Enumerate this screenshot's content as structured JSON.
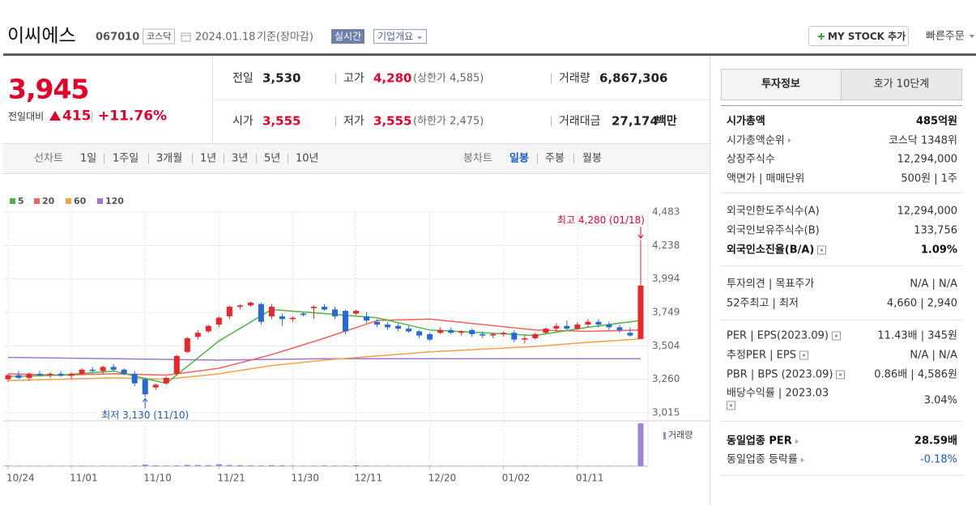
{
  "header": {
    "name": "이씨에스",
    "code": "067010",
    "market": "코스닥",
    "date": "2024.01.18",
    "basis": "기준(장마감)",
    "realtime": "실시간",
    "overview": "기업개요",
    "mystock": "MY STOCK 추가",
    "quick_order": "빠른주문"
  },
  "quote": {
    "price": "3,945",
    "change_label": "전일대비",
    "change": "415",
    "change_pct": "+11.76%"
  },
  "stats": [
    {
      "label": "전일",
      "value": "3,530"
    },
    {
      "label": "고가",
      "value": "4,280",
      "note": "(상한가 4,585)"
    },
    {
      "label": "거래량",
      "value": "6,867,306"
    },
    {
      "label": "시가",
      "value": "3,555"
    },
    {
      "label": "저가",
      "value": "3,555",
      "note": "(하한가 2,475)"
    },
    {
      "label": "거래대금",
      "value": "27,174",
      "unit": "백만"
    }
  ],
  "period": {
    "line_label": "선차트",
    "line": [
      "1일",
      "1주일",
      "3개월",
      "1년",
      "3년",
      "5년",
      "10년"
    ],
    "candle_label": "봉차트",
    "candle": [
      "일봉",
      "주봉",
      "월봉"
    ]
  },
  "chart_data": {
    "type": "candlestick",
    "up_color": "#e8262b",
    "down_color": "#2469d6",
    "categories": [
      "10/24",
      null,
      null,
      null,
      null,
      null,
      "11/01",
      null,
      null,
      null,
      null,
      null,
      null,
      "11/10",
      null,
      null,
      null,
      null,
      null,
      null,
      "11/21",
      null,
      null,
      null,
      null,
      null,
      null,
      "11/30",
      null,
      null,
      null,
      null,
      null,
      "12/11",
      null,
      null,
      null,
      null,
      null,
      null,
      "12/20",
      null,
      null,
      null,
      null,
      null,
      null,
      "01/02",
      null,
      null,
      null,
      null,
      null,
      null,
      "01/11",
      null,
      null,
      null,
      null,
      null,
      null
    ],
    "ohlc": [
      [
        3260,
        3300,
        3240,
        3290
      ],
      [
        3290,
        3320,
        3260,
        3270
      ],
      [
        3270,
        3310,
        3250,
        3300
      ],
      [
        3300,
        3320,
        3280,
        3290
      ],
      [
        3290,
        3310,
        3270,
        3300
      ],
      [
        3300,
        3320,
        3280,
        3285
      ],
      [
        3285,
        3310,
        3260,
        3300
      ],
      [
        3300,
        3340,
        3290,
        3330
      ],
      [
        3330,
        3350,
        3310,
        3320
      ],
      [
        3320,
        3360,
        3300,
        3350
      ],
      [
        3350,
        3370,
        3320,
        3330
      ],
      [
        3330,
        3340,
        3290,
        3300
      ],
      [
        3300,
        3320,
        3210,
        3230
      ],
      [
        3260,
        3270,
        3130,
        3150
      ],
      [
        3200,
        3230,
        3180,
        3220
      ],
      [
        3230,
        3280,
        3220,
        3270
      ],
      [
        3300,
        3440,
        3290,
        3430
      ],
      [
        3460,
        3570,
        3450,
        3560
      ],
      [
        3570,
        3620,
        3550,
        3600
      ],
      [
        3610,
        3660,
        3600,
        3650
      ],
      [
        3660,
        3720,
        3640,
        3710
      ],
      [
        3720,
        3800,
        3700,
        3790
      ],
      [
        3790,
        3810,
        3770,
        3800
      ],
      [
        3800,
        3830,
        3790,
        3820
      ],
      [
        3810,
        3820,
        3660,
        3680
      ],
      [
        3720,
        3810,
        3700,
        3790
      ],
      [
        3720,
        3740,
        3650,
        3700
      ],
      [
        3700,
        3720,
        3680,
        3710
      ],
      [
        3740,
        3750,
        3720,
        3730
      ],
      [
        3780,
        3800,
        3700,
        3790
      ],
      [
        3790,
        3810,
        3760,
        3770
      ],
      [
        3770,
        3790,
        3700,
        3720
      ],
      [
        3760,
        3770,
        3590,
        3610
      ],
      [
        3740,
        3770,
        3730,
        3760
      ],
      [
        3720,
        3750,
        3670,
        3690
      ],
      [
        3680,
        3700,
        3640,
        3660
      ],
      [
        3660,
        3680,
        3620,
        3640
      ],
      [
        3650,
        3670,
        3610,
        3630
      ],
      [
        3630,
        3650,
        3600,
        3610
      ],
      [
        3610,
        3620,
        3560,
        3580
      ],
      [
        3590,
        3600,
        3540,
        3550
      ],
      [
        3600,
        3640,
        3590,
        3620
      ],
      [
        3620,
        3640,
        3590,
        3600
      ],
      [
        3600,
        3620,
        3580,
        3610
      ],
      [
        3620,
        3630,
        3570,
        3590
      ],
      [
        3590,
        3610,
        3560,
        3580
      ],
      [
        3580,
        3600,
        3560,
        3590
      ],
      [
        3590,
        3610,
        3570,
        3600
      ],
      [
        3600,
        3620,
        3530,
        3550
      ],
      [
        3550,
        3580,
        3520,
        3560
      ],
      [
        3560,
        3600,
        3550,
        3590
      ],
      [
        3600,
        3640,
        3590,
        3630
      ],
      [
        3630,
        3670,
        3610,
        3650
      ],
      [
        3650,
        3690,
        3620,
        3630
      ],
      [
        3630,
        3680,
        3620,
        3660
      ],
      [
        3660,
        3700,
        3640,
        3680
      ],
      [
        3680,
        3700,
        3640,
        3660
      ],
      [
        3660,
        3680,
        3620,
        3640
      ],
      [
        3640,
        3660,
        3600,
        3620
      ],
      [
        3600,
        3640,
        3570,
        3580
      ],
      [
        3555,
        4280,
        3555,
        3945
      ]
    ],
    "ma_series": [
      {
        "name": "5",
        "color": "#4fb548",
        "values": [
          3280,
          3282,
          3284,
          3286,
          3288,
          3290,
          3296,
          3302,
          3308,
          3314,
          3320,
          3302,
          3284,
          3266,
          3248,
          3230,
          3292,
          3354,
          3416,
          3478,
          3540,
          3586,
          3632,
          3678,
          3724,
          3770,
          3764,
          3758,
          3752,
          3746,
          3740,
          3734,
          3728,
          3722,
          3716,
          3710,
          3692,
          3674,
          3656,
          3638,
          3620,
          3616,
          3612,
          3608,
          3604,
          3600,
          3596,
          3592,
          3588,
          3584,
          3580,
          3592,
          3604,
          3616,
          3628,
          3640,
          3650,
          3660,
          3670,
          3680,
          3690
        ]
      },
      {
        "name": "20",
        "color": "#f0625c",
        "values": [
          3300,
          3298,
          3296,
          3294,
          3292,
          3290,
          3292,
          3294,
          3296,
          3298,
          3300,
          3298,
          3296,
          3294,
          3292,
          3290,
          3300,
          3310,
          3320,
          3330,
          3340,
          3360,
          3380,
          3400,
          3420,
          3440,
          3464,
          3488,
          3512,
          3536,
          3560,
          3586,
          3612,
          3638,
          3664,
          3690,
          3692,
          3694,
          3696,
          3698,
          3700,
          3692,
          3684,
          3676,
          3668,
          3660,
          3652,
          3644,
          3636,
          3628,
          3620,
          3618,
          3616,
          3614,
          3612,
          3610,
          3612,
          3614,
          3616,
          3618,
          3620
        ]
      },
      {
        "name": "60",
        "color": "#f7a04a",
        "values": [
          3250,
          3252,
          3254,
          3256,
          3258,
          3260,
          3262,
          3264,
          3266,
          3268,
          3270,
          3268,
          3266,
          3264,
          3262,
          3260,
          3268,
          3276,
          3284,
          3292,
          3300,
          3312,
          3324,
          3336,
          3348,
          3360,
          3368,
          3376,
          3384,
          3392,
          3400,
          3406,
          3412,
          3418,
          3424,
          3430,
          3436,
          3442,
          3448,
          3454,
          3460,
          3464,
          3468,
          3472,
          3476,
          3480,
          3484,
          3488,
          3492,
          3496,
          3500,
          3506,
          3512,
          3518,
          3524,
          3530,
          3535,
          3540,
          3545,
          3550,
          3555
        ]
      },
      {
        "name": "120",
        "color": "#a374d6",
        "values": [
          3420,
          3419,
          3418,
          3417,
          3416,
          3415,
          3414,
          3413,
          3412,
          3411,
          3410,
          3409,
          3408,
          3407,
          3406,
          3405,
          3404,
          3403,
          3402,
          3401,
          3400,
          3401,
          3402,
          3403,
          3404,
          3405,
          3406,
          3407,
          3408,
          3409,
          3410,
          3410,
          3410,
          3410,
          3410,
          3410,
          3410,
          3410,
          3410,
          3410,
          3410,
          3410,
          3410,
          3410,
          3410,
          3410,
          3410,
          3410,
          3410,
          3410,
          3410,
          3410,
          3410,
          3410,
          3410,
          3410,
          3410,
          3410,
          3410,
          3410,
          3410
        ]
      }
    ],
    "volume": {
      "name": "거래량",
      "color": "#9d86d4",
      "ylim": [
        0,
        7000000
      ],
      "values": [
        90000,
        70000,
        60000,
        50000,
        60000,
        50000,
        70000,
        80000,
        60000,
        70000,
        60000,
        50000,
        90000,
        250000,
        120000,
        90000,
        110000,
        200000,
        180000,
        150000,
        320000,
        180000,
        160000,
        120000,
        100000,
        150000,
        120000,
        90000,
        70000,
        80000,
        110000,
        90000,
        80000,
        130000,
        90000,
        70000,
        60000,
        60000,
        50000,
        50000,
        70000,
        60000,
        50000,
        50000,
        40000,
        60000,
        50000,
        40000,
        50000,
        70000,
        60000,
        50000,
        60000,
        70000,
        60000,
        50000,
        60000,
        50000,
        50000,
        60000,
        6867306
      ]
    },
    "ylim": [
      3015,
      4483
    ],
    "yticks": [
      {
        "value": 3015,
        "label": "3,015"
      },
      {
        "value": 3260,
        "label": "3,260"
      },
      {
        "value": 3504,
        "label": "3,504"
      },
      {
        "value": 3749,
        "label": "3,749"
      },
      {
        "value": 3994,
        "label": "3,994"
      },
      {
        "value": 4238,
        "label": "4,238"
      },
      {
        "value": 4483,
        "label": "4,483"
      }
    ],
    "grid": true,
    "annotations": {
      "high": "최고 4,280 (01/18)",
      "low": "최저 3,130 (11/10)"
    }
  },
  "sidebar": {
    "tabs": [
      "투자정보",
      "호가 10단계"
    ],
    "sections": [
      [
        {
          "label": "시가총액",
          "value": "485억원"
        },
        {
          "label": "시가총액순위",
          "value": "코스닥 1348위"
        },
        {
          "label": "상장주식수",
          "value": "12,294,000"
        },
        {
          "label": "액면가 | 매매단위",
          "value": "500원 | 1주"
        }
      ],
      [
        {
          "label": "외국인한도주식수(A)",
          "value": "12,294,000"
        },
        {
          "label": "외국인보유주식수(B)",
          "value": "133,756"
        },
        {
          "label": "외국인소진율(B/A)",
          "value": "1.09%"
        }
      ],
      [
        {
          "label": "투자의견 | 목표주가",
          "value": "N/A | N/A"
        },
        {
          "label": "52주최고 | 최저",
          "value": "4,660 | 2,940"
        }
      ],
      [
        {
          "label": "PER | EPS(2023.09)",
          "value": "11.43배 | 345원"
        },
        {
          "label": "추정PER | EPS",
          "value": "N/A | N/A"
        },
        {
          "label": "PBR | BPS (2023.09)",
          "value": "0.86배 | 4,586원"
        },
        {
          "label": "배당수익률 | 2023.03",
          "value": "3.04%"
        }
      ],
      [
        {
          "label": "동일업종 PER",
          "value": "28.59배"
        },
        {
          "label": "동일업종 등락률",
          "value": "-0.18%"
        }
      ]
    ]
  }
}
